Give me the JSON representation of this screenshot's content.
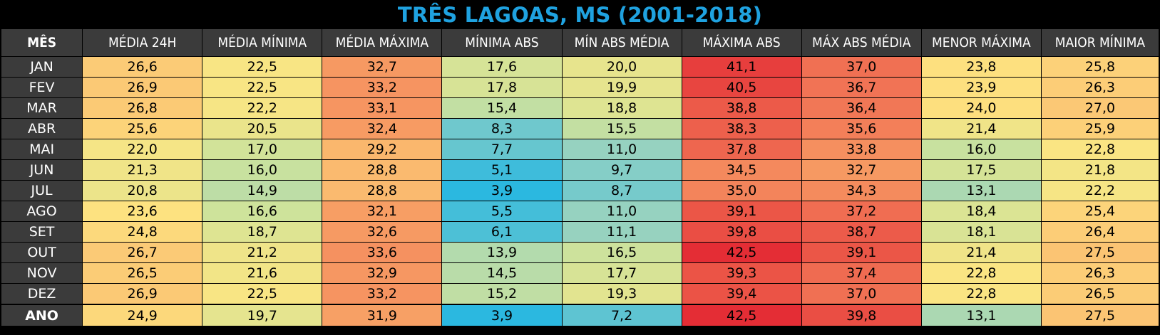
{
  "chart_data": {
    "type": "table",
    "title": "TRÊS LAGOAS, MS (2001-2018)",
    "columns": [
      "MÊS",
      "MÉDIA 24H",
      "MÉDIA MÍNIMA",
      "MÉDIA MÁXIMA",
      "MÍNIMA ABS",
      "MÍN ABS MÉDIA",
      "MÁXIMA ABS",
      "MÁX ABS MÉDIA",
      "MENOR MÁXIMA",
      "MAIOR MÍNIMA"
    ],
    "rows": [
      {
        "label": "JAN",
        "values": [
          "26,6",
          "22,5",
          "32,7",
          "17,6",
          "20,0",
          "41,1",
          "37,0",
          "23,8",
          "25,8"
        ]
      },
      {
        "label": "FEV",
        "values": [
          "26,9",
          "22,5",
          "33,2",
          "17,8",
          "19,9",
          "40,5",
          "36,7",
          "23,9",
          "26,3"
        ]
      },
      {
        "label": "MAR",
        "values": [
          "26,8",
          "22,2",
          "33,1",
          "15,4",
          "18,8",
          "38,8",
          "36,4",
          "24,0",
          "27,0"
        ]
      },
      {
        "label": "ABR",
        "values": [
          "25,6",
          "20,5",
          "32,4",
          "8,3",
          "15,5",
          "38,3",
          "35,6",
          "21,4",
          "25,9"
        ]
      },
      {
        "label": "MAI",
        "values": [
          "22,0",
          "17,0",
          "29,2",
          "7,7",
          "11,0",
          "37,8",
          "33,8",
          "16,0",
          "22,8"
        ]
      },
      {
        "label": "JUN",
        "values": [
          "21,3",
          "16,0",
          "28,8",
          "5,1",
          "9,7",
          "34,5",
          "32,7",
          "17,5",
          "21,8"
        ]
      },
      {
        "label": "JUL",
        "values": [
          "20,8",
          "14,9",
          "28,8",
          "3,9",
          "8,7",
          "35,0",
          "34,3",
          "13,1",
          "22,2"
        ]
      },
      {
        "label": "AGO",
        "values": [
          "23,6",
          "16,6",
          "32,1",
          "5,5",
          "11,0",
          "39,1",
          "37,2",
          "18,4",
          "25,4"
        ]
      },
      {
        "label": "SET",
        "values": [
          "24,8",
          "18,7",
          "32,6",
          "6,1",
          "11,1",
          "39,8",
          "38,7",
          "18,1",
          "26,4"
        ]
      },
      {
        "label": "OUT",
        "values": [
          "26,7",
          "21,2",
          "33,6",
          "13,9",
          "16,5",
          "42,5",
          "39,1",
          "21,4",
          "27,5"
        ]
      },
      {
        "label": "NOV",
        "values": [
          "26,5",
          "21,6",
          "32,9",
          "14,5",
          "17,7",
          "39,3",
          "37,4",
          "22,8",
          "26,3"
        ]
      },
      {
        "label": "DEZ",
        "values": [
          "26,9",
          "22,5",
          "33,2",
          "15,2",
          "19,3",
          "39,4",
          "37,0",
          "22,8",
          "26,5"
        ]
      }
    ],
    "total": {
      "label": "ANO",
      "values": [
        "24,9",
        "19,7",
        "31,9",
        "3,9",
        "7,2",
        "42,5",
        "39,8",
        "13,1",
        "27,5"
      ]
    },
    "color_scale": {
      "min_value": 3.9,
      "max_value": 42.5,
      "stops": [
        "#2bb8e0",
        "#8fd0c4",
        "#d0e39a",
        "#fde581",
        "#fab46c",
        "#f27b58",
        "#e42d35"
      ]
    },
    "header_bg": "#3b3b3b",
    "title_color": "#1fa2e0"
  }
}
